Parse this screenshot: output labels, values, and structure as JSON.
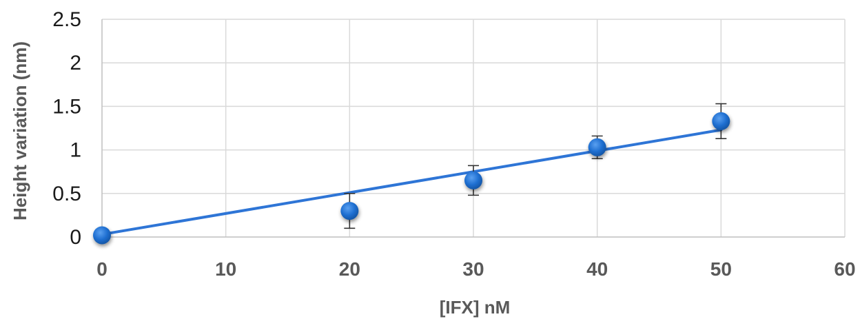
{
  "chart_data": {
    "type": "scatter",
    "title": "",
    "xlabel": "[IFX] nM",
    "ylabel": "Height variation (nm)",
    "xlim": [
      0,
      60
    ],
    "ylim": [
      0,
      2.5
    ],
    "xticks": [
      "0",
      "10",
      "20",
      "30",
      "40",
      "50",
      "60"
    ],
    "yticks": [
      "0",
      "0.5",
      "1",
      "1.5",
      "2",
      "2.5"
    ],
    "grid": true,
    "legend": "none",
    "marker_color": "#1f6fd1",
    "line_color": "#2e75d6",
    "series": [
      {
        "x": [
          0,
          20,
          30,
          40,
          50
        ],
        "y": [
          0.02,
          0.3,
          0.65,
          1.03,
          1.33
        ],
        "error": [
          0.03,
          0.2,
          0.17,
          0.13,
          0.2
        ]
      }
    ],
    "trendline": {
      "type": "linear",
      "x": [
        0,
        50
      ],
      "y": [
        0.03,
        1.23
      ]
    }
  }
}
